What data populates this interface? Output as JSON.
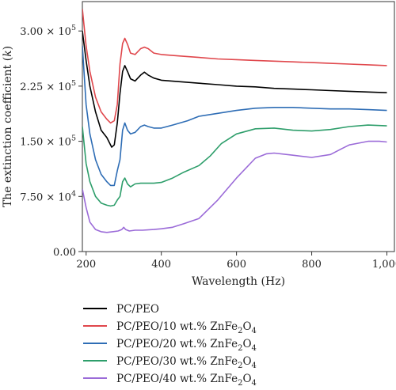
{
  "chart_data": {
    "type": "line",
    "xlabel": "Wavelength (Hz)",
    "ylabel_prefix": "The extinction coefficient (",
    "ylabel_var": "k",
    "ylabel_suffix": ")",
    "xlim": [
      190,
      1020
    ],
    "ylim": [
      0,
      340000
    ],
    "xticks": [
      200,
      400,
      600,
      800,
      1000
    ],
    "xtick_labels": [
      "200",
      "400",
      "600",
      "800",
      "1,000"
    ],
    "yticks": [
      0,
      75000,
      150000,
      225000,
      300000
    ],
    "ytick_labels": [
      {
        "mant": "0.00",
        "exp": ""
      },
      {
        "mant": "7.50 × 10",
        "exp": "4"
      },
      {
        "mant": "1.50 × 10",
        "exp": "5"
      },
      {
        "mant": "2.25 × 10",
        "exp": "5"
      },
      {
        "mant": "3.00 × 10",
        "exp": "5"
      }
    ],
    "grid": false,
    "legend_position": "bottom",
    "series": [
      {
        "label_base": "PC/PEO",
        "label_mid": "",
        "label_sub": "",
        "label_end": "",
        "color": "#000000",
        "x": [
          190,
          200,
          210,
          225,
          240,
          255,
          268,
          275,
          283,
          290,
          297,
          303,
          310,
          318,
          330,
          345,
          355,
          365,
          380,
          400,
          450,
          500,
          550,
          600,
          650,
          700,
          750,
          800,
          850,
          900,
          950,
          1000
        ],
        "y": [
          300000,
          260000,
          225000,
          190000,
          165000,
          155000,
          142000,
          145000,
          175000,
          215000,
          245000,
          253000,
          245000,
          235000,
          232000,
          240000,
          244000,
          240000,
          236000,
          233000,
          231000,
          229000,
          227000,
          225000,
          224000,
          222000,
          221000,
          220000,
          219000,
          218000,
          217000,
          216000
        ]
      },
      {
        "label_base": "PC/PEO/10 wt.% ZnFe",
        "label_mid": "",
        "label_sub": "2",
        "label_end": "O",
        "label_sub2": "4",
        "color": "#e0474c",
        "x": [
          190,
          200,
          210,
          225,
          240,
          255,
          265,
          275,
          283,
          290,
          297,
          303,
          310,
          318,
          330,
          345,
          355,
          365,
          380,
          400,
          450,
          500,
          550,
          600,
          650,
          700,
          750,
          800,
          850,
          900,
          950,
          1000
        ],
        "y": [
          330000,
          280000,
          245000,
          210000,
          190000,
          180000,
          175000,
          178000,
          200000,
          255000,
          283000,
          290000,
          282000,
          270000,
          268000,
          276000,
          278000,
          276000,
          270000,
          268000,
          266000,
          264000,
          262000,
          261000,
          260000,
          259000,
          258000,
          257000,
          256000,
          255000,
          254000,
          253000
        ]
      },
      {
        "label_base": "PC/PEO/20 wt.% ZnFe",
        "label_mid": "",
        "label_sub": "2",
        "label_end": "O",
        "label_sub2": "4",
        "color": "#2e6db5",
        "x": [
          190,
          200,
          210,
          225,
          240,
          255,
          265,
          275,
          283,
          290,
          297,
          303,
          310,
          318,
          330,
          345,
          355,
          365,
          380,
          400,
          430,
          470,
          500,
          550,
          600,
          650,
          700,
          750,
          800,
          850,
          900,
          950,
          1000
        ],
        "y": [
          280000,
          200000,
          160000,
          125000,
          105000,
          95000,
          90000,
          90000,
          110000,
          125000,
          165000,
          175000,
          165000,
          160000,
          162000,
          170000,
          172000,
          170000,
          168000,
          168000,
          172000,
          178000,
          184000,
          188000,
          192000,
          195000,
          196000,
          196000,
          195000,
          194000,
          194000,
          193000,
          192000
        ]
      },
      {
        "label_base": "PC/PEO/30 wt.% ZnFe",
        "label_mid": "",
        "label_sub": "2",
        "label_end": "O",
        "label_sub2": "4",
        "color": "#2e9e6b",
        "x": [
          190,
          200,
          210,
          225,
          240,
          255,
          265,
          275,
          283,
          290,
          297,
          303,
          310,
          318,
          330,
          345,
          360,
          380,
          400,
          430,
          460,
          500,
          530,
          560,
          600,
          650,
          700,
          750,
          800,
          850,
          900,
          950,
          1000
        ],
        "y": [
          170000,
          120000,
          95000,
          75000,
          66000,
          63000,
          62000,
          63000,
          70000,
          75000,
          95000,
          100000,
          92000,
          88000,
          92000,
          93000,
          93000,
          93000,
          94000,
          100000,
          108000,
          117000,
          130000,
          147000,
          160000,
          167000,
          168000,
          165000,
          164000,
          166000,
          170000,
          172000,
          171000
        ]
      },
      {
        "label_base": "PC/PEO/40 wt.% ZnFe",
        "label_mid": "",
        "label_sub": "2",
        "label_end": "O",
        "label_sub2": "4",
        "color": "#9b6bd8",
        "x": [
          190,
          200,
          210,
          225,
          240,
          255,
          270,
          285,
          295,
          300,
          305,
          315,
          330,
          350,
          380,
          400,
          430,
          460,
          500,
          550,
          600,
          650,
          680,
          700,
          750,
          800,
          850,
          880,
          900,
          920,
          950,
          980,
          1000
        ],
        "y": [
          85000,
          60000,
          40000,
          30000,
          27000,
          26000,
          27000,
          28000,
          30000,
          33000,
          30000,
          28000,
          29000,
          29000,
          30000,
          31000,
          33000,
          38000,
          45000,
          70000,
          100000,
          127000,
          133000,
          134000,
          131000,
          128000,
          132000,
          140000,
          145000,
          147000,
          150000,
          150000,
          149000
        ]
      }
    ]
  }
}
